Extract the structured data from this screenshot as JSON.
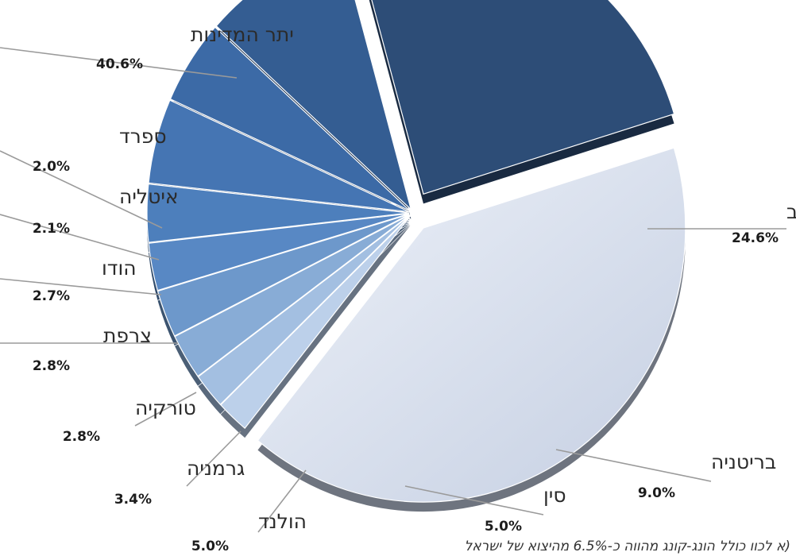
{
  "chart_data": {
    "type": "pie",
    "style": "3d-exploded",
    "slices": [
      {
        "label": "ארה\"ב",
        "value": 24.6,
        "value_label": "24.6%",
        "color": "#2d4d77"
      },
      {
        "label": "בריטניה",
        "value": 9.0,
        "value_label": "9.0%",
        "color": "#345d92"
      },
      {
        "label": "סין",
        "value": 5.0,
        "value_label": "5.0%",
        "color": "#3c6aa6"
      },
      {
        "label": "הולנד",
        "value": 5.0,
        "value_label": "5.0%",
        "color": "#4575b3"
      },
      {
        "label": "גרמניה",
        "value": 3.4,
        "value_label": "3.4%",
        "color": "#4d7fbc"
      },
      {
        "label": "טורקיה",
        "value": 2.8,
        "value_label": "2.8%",
        "color": "#5888c4"
      },
      {
        "label": "צרפת",
        "value": 2.8,
        "value_label": "2.8%",
        "color": "#6d98cb"
      },
      {
        "label": "הודו",
        "value": 2.7,
        "value_label": "2.7%",
        "color": "#88acd6"
      },
      {
        "label": "איטליה",
        "value": 2.1,
        "value_label": "2.1%",
        "color": "#a3bfe1"
      },
      {
        "label": "ספרד",
        "value": 2.0,
        "value_label": "2.0%",
        "color": "#bcd0ea"
      },
      {
        "label": "יתר המדינות",
        "value": 40.6,
        "value_label": "40.6%",
        "color": "#c8d2e6"
      }
    ],
    "legend": "none",
    "footnote": "א לכוו כולל הונג-קונג מהווה כ-6.5% מהיצוא של ישראל)"
  }
}
